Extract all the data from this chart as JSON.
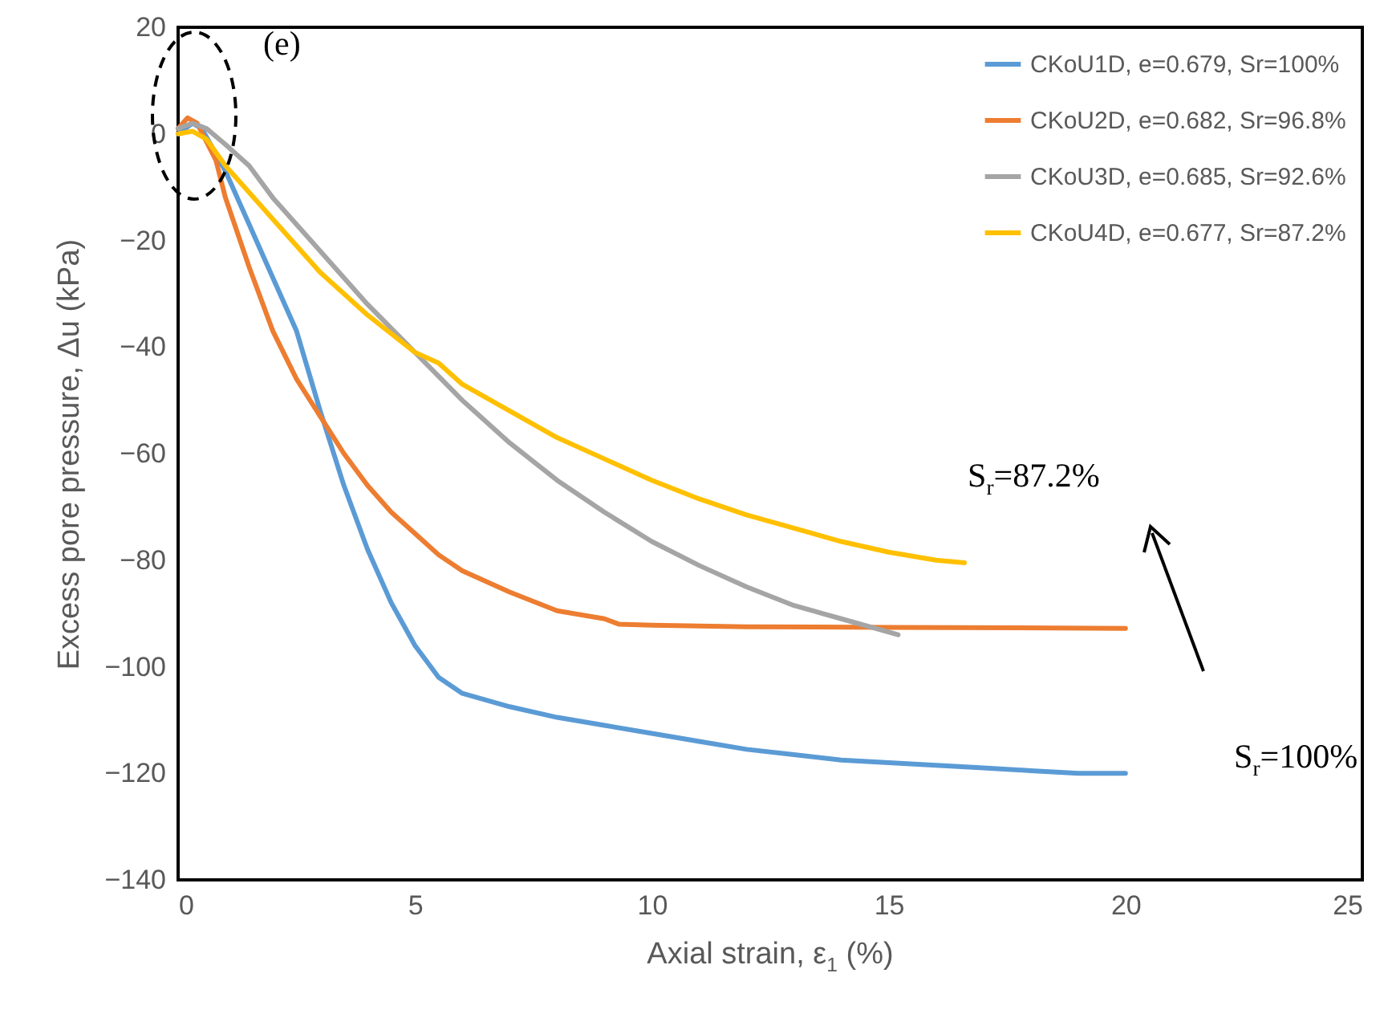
{
  "chart_data": {
    "type": "line",
    "xlabel": "Axial strain, ε$_{1}$ (%)",
    "ylabel": "Excess pore pressure, Δu (kPa)",
    "xlim": [
      0,
      25
    ],
    "xticks": [
      0,
      5,
      10,
      15,
      20,
      25
    ],
    "ylim": [
      -140,
      20
    ],
    "yticks": [
      -140,
      -120,
      -100,
      -80,
      -60,
      -40,
      -20,
      0,
      20
    ],
    "grid": false,
    "legend": "top right",
    "line_style": "solid",
    "marker": "none",
    "annotations": [
      "(e)",
      "S$_{r}$=87.2%",
      "S$_{r}$=100%"
    ],
    "series": [
      {
        "name": "CKoU1D, e=0.679, Sr=100%",
        "color": "#5b9bd5",
        "x": [
          0,
          0.3,
          0.5,
          1,
          1.5,
          2,
          2.5,
          3,
          3.5,
          4,
          4.5,
          5,
          5.5,
          6,
          7,
          8,
          9,
          10,
          11,
          12,
          13,
          14,
          15,
          16,
          17,
          18,
          19,
          20
        ],
        "values": [
          0,
          2,
          1,
          -7,
          -17,
          -27,
          -37,
          -52,
          -66,
          -78,
          -88,
          -96,
          -102,
          -105,
          -107.5,
          -109.5,
          -111,
          -112.5,
          -114,
          -115.5,
          -116.5,
          -117.5,
          -118,
          -118.5,
          -119,
          -119.5,
          -120,
          -120
        ]
      },
      {
        "name": "CKoU2D, e=0.682, Sr=96.8%",
        "color": "#ed7d31",
        "x": [
          0,
          0.2,
          0.4,
          0.8,
          1,
          1.5,
          2,
          2.5,
          3,
          3.5,
          4,
          4.5,
          5,
          5.5,
          6,
          7,
          8,
          9,
          9.3,
          10,
          12,
          15,
          20
        ],
        "values": [
          1,
          3,
          2,
          -5,
          -12,
          -25,
          -37,
          -46,
          -53,
          -60,
          -66,
          -71,
          -75,
          -79,
          -82,
          -86,
          -89.5,
          -91,
          -92,
          -92.2,
          -92.5,
          -92.6,
          -92.8
        ]
      },
      {
        "name": "CKoU3D, e=0.685, Sr=92.6%",
        "color": "#a5a5a5",
        "x": [
          0,
          0.3,
          0.6,
          1,
          1.5,
          2,
          3,
          4,
          5,
          6,
          7,
          8,
          9,
          10,
          11,
          12,
          13,
          14,
          15.2
        ],
        "values": [
          1,
          2,
          1,
          -2,
          -6,
          -12,
          -22,
          -32,
          -41,
          -50,
          -58,
          -65,
          -71,
          -76.5,
          -81,
          -85,
          -88.5,
          -91,
          -94
        ]
      },
      {
        "name": "CKoU4D, e=0.677, Sr=87.2%",
        "color": "#ffc000",
        "x": [
          0,
          0.3,
          0.6,
          1,
          2,
          3,
          4,
          5,
          5.5,
          6,
          7,
          8,
          9,
          10,
          11,
          12,
          13,
          14,
          15,
          16,
          16.6
        ],
        "values": [
          0,
          0.5,
          -1,
          -6,
          -16,
          -26,
          -34,
          -41,
          -43,
          -47,
          -52,
          -57,
          -61,
          -65,
          -68.5,
          -71.5,
          -74,
          -76.5,
          -78.5,
          -80,
          -80.5
        ]
      }
    ]
  }
}
